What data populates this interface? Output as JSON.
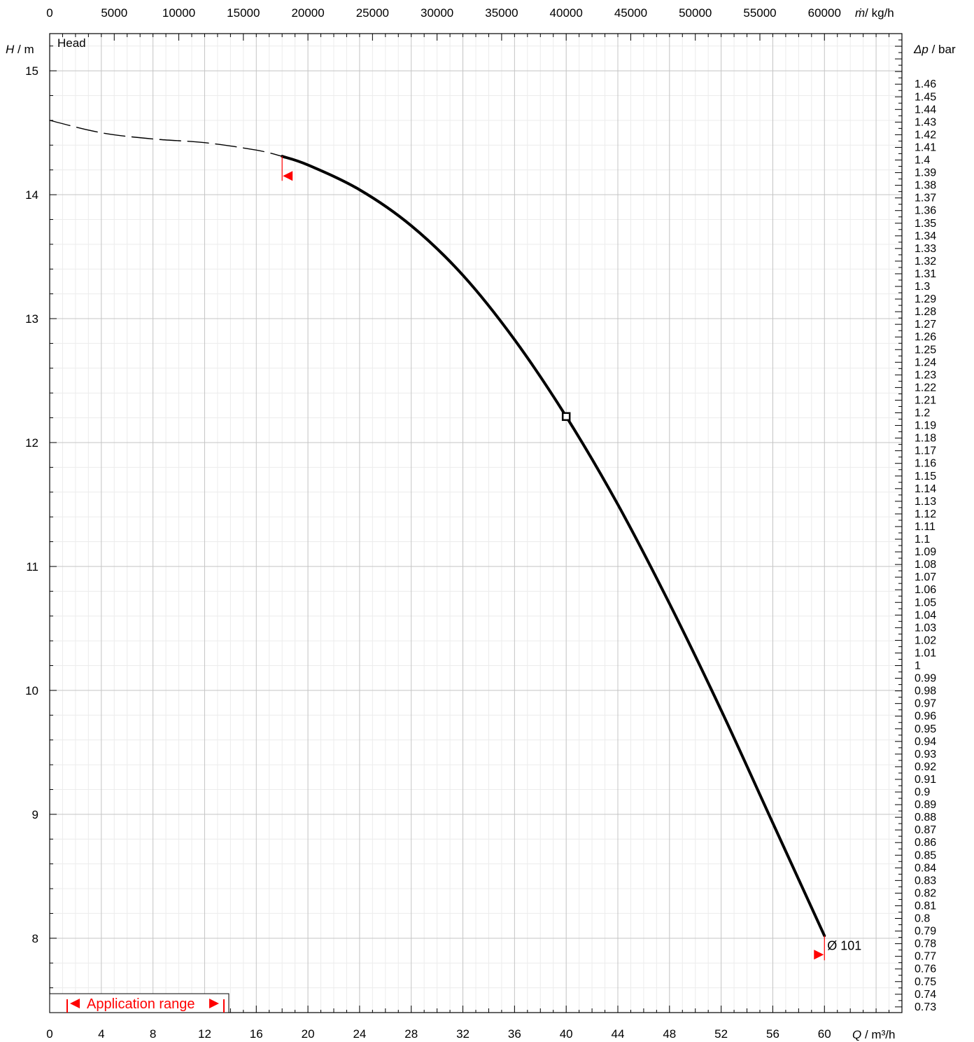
{
  "chart_data": {
    "type": "line",
    "title": "Head",
    "x_axis": {
      "label_symbol": "Q",
      "label_unit": " / m³/h",
      "range": [
        0,
        66
      ],
      "major_ticks": [
        0,
        4,
        8,
        12,
        16,
        20,
        24,
        28,
        32,
        36,
        40,
        44,
        48,
        52,
        56,
        60
      ],
      "tick_labels": [
        "0",
        "4",
        "8",
        "12",
        "16",
        "20",
        "24",
        "28",
        "32",
        "36",
        "40",
        "44",
        "48",
        "52",
        "56",
        "60"
      ]
    },
    "x2_axis": {
      "label_symbol": "ṁ",
      "label_unit": "/ kg/h",
      "tick_values": [
        0,
        5000,
        10000,
        15000,
        20000,
        25000,
        30000,
        35000,
        40000,
        45000,
        50000,
        55000,
        60000
      ],
      "tick_labels": [
        "0",
        "5000",
        "10000",
        "15000",
        "20000",
        "25000",
        "30000",
        "35000",
        "40000",
        "45000",
        "50000",
        "55000",
        "60000"
      ]
    },
    "y_axis": {
      "label_symbol": "H",
      "label_unit": " / m",
      "range": [
        7.4,
        15.3
      ],
      "tick_values": [
        8,
        9,
        10,
        11,
        12,
        13,
        14,
        15
      ],
      "tick_labels": [
        "8",
        "9",
        "10",
        "11",
        "12",
        "13",
        "14",
        "15"
      ]
    },
    "y2_axis": {
      "label_symbol": "Δp",
      "label_unit": " / bar",
      "tick_values": [
        1.46,
        1.45,
        1.44,
        1.43,
        1.42,
        1.41,
        1.4,
        1.39,
        1.38,
        1.37,
        1.36,
        1.35,
        1.34,
        1.33,
        1.32,
        1.31,
        1.3,
        1.29,
        1.28,
        1.27,
        1.26,
        1.25,
        1.24,
        1.23,
        1.22,
        1.21,
        1.2,
        1.19,
        1.18,
        1.17,
        1.16,
        1.15,
        1.14,
        1.13,
        1.12,
        1.11,
        1.1,
        1.09,
        1.08,
        1.07,
        1.06,
        1.05,
        1.04,
        1.03,
        1.02,
        1.01,
        1,
        0.99,
        0.98,
        0.97,
        0.96,
        0.95,
        0.94,
        0.93,
        0.92,
        0.91,
        0.9,
        0.89,
        0.88,
        0.87,
        0.86,
        0.85,
        0.84,
        0.83,
        0.82,
        0.81,
        0.8,
        0.79,
        0.78,
        0.77,
        0.76,
        0.75,
        0.74,
        0.73
      ],
      "tick_labels": [
        "1.46",
        "1.45",
        "1.44",
        "1.43",
        "1.42",
        "1.41",
        "1.4",
        "1.39",
        "1.38",
        "1.37",
        "1.36",
        "1.35",
        "1.34",
        "1.33",
        "1.32",
        "1.31",
        "1.3",
        "1.29",
        "1.28",
        "1.27",
        "1.26",
        "1.25",
        "1.24",
        "1.23",
        "1.22",
        "1.21",
        "1.2",
        "1.19",
        "1.18",
        "1.17",
        "1.16",
        "1.15",
        "1.14",
        "1.13",
        "1.12",
        "1.11",
        "1.1",
        "1.09",
        "1.08",
        "1.07",
        "1.06",
        "1.05",
        "1.04",
        "1.03",
        "1.02",
        "1.01",
        "1",
        "0.99",
        "0.98",
        "0.97",
        "0.96",
        "0.95",
        "0.94",
        "0.93",
        "0.92",
        "0.91",
        "0.9",
        "0.89",
        "0.88",
        "0.87",
        "0.86",
        "0.85",
        "0.84",
        "0.83",
        "0.82",
        "0.81",
        "0.8",
        "0.79",
        "0.78",
        "0.77",
        "0.76",
        "0.75",
        "0.74",
        "0.73"
      ]
    },
    "grid": true,
    "series": [
      {
        "style": "dashed",
        "x": [
          0,
          4,
          8,
          12,
          16,
          18
        ],
        "y": [
          14.6,
          14.5,
          14.45,
          14.42,
          14.36,
          14.31
        ]
      },
      {
        "name": "Ø 101",
        "style": "solid",
        "x": [
          18,
          20,
          24,
          28,
          32,
          36,
          40,
          44,
          48,
          52,
          56,
          60
        ],
        "y": [
          14.31,
          14.24,
          14.04,
          13.75,
          13.35,
          12.83,
          12.21,
          11.5,
          10.7,
          9.84,
          8.93,
          8.02
        ]
      }
    ],
    "operating_point": {
      "x": 40,
      "y": 12.21
    },
    "application_range": {
      "label": "Application range",
      "min_q": 18,
      "max_q": 60
    },
    "curve_label": "Ø 101"
  },
  "legend": {
    "application_range_label": "Application range"
  }
}
